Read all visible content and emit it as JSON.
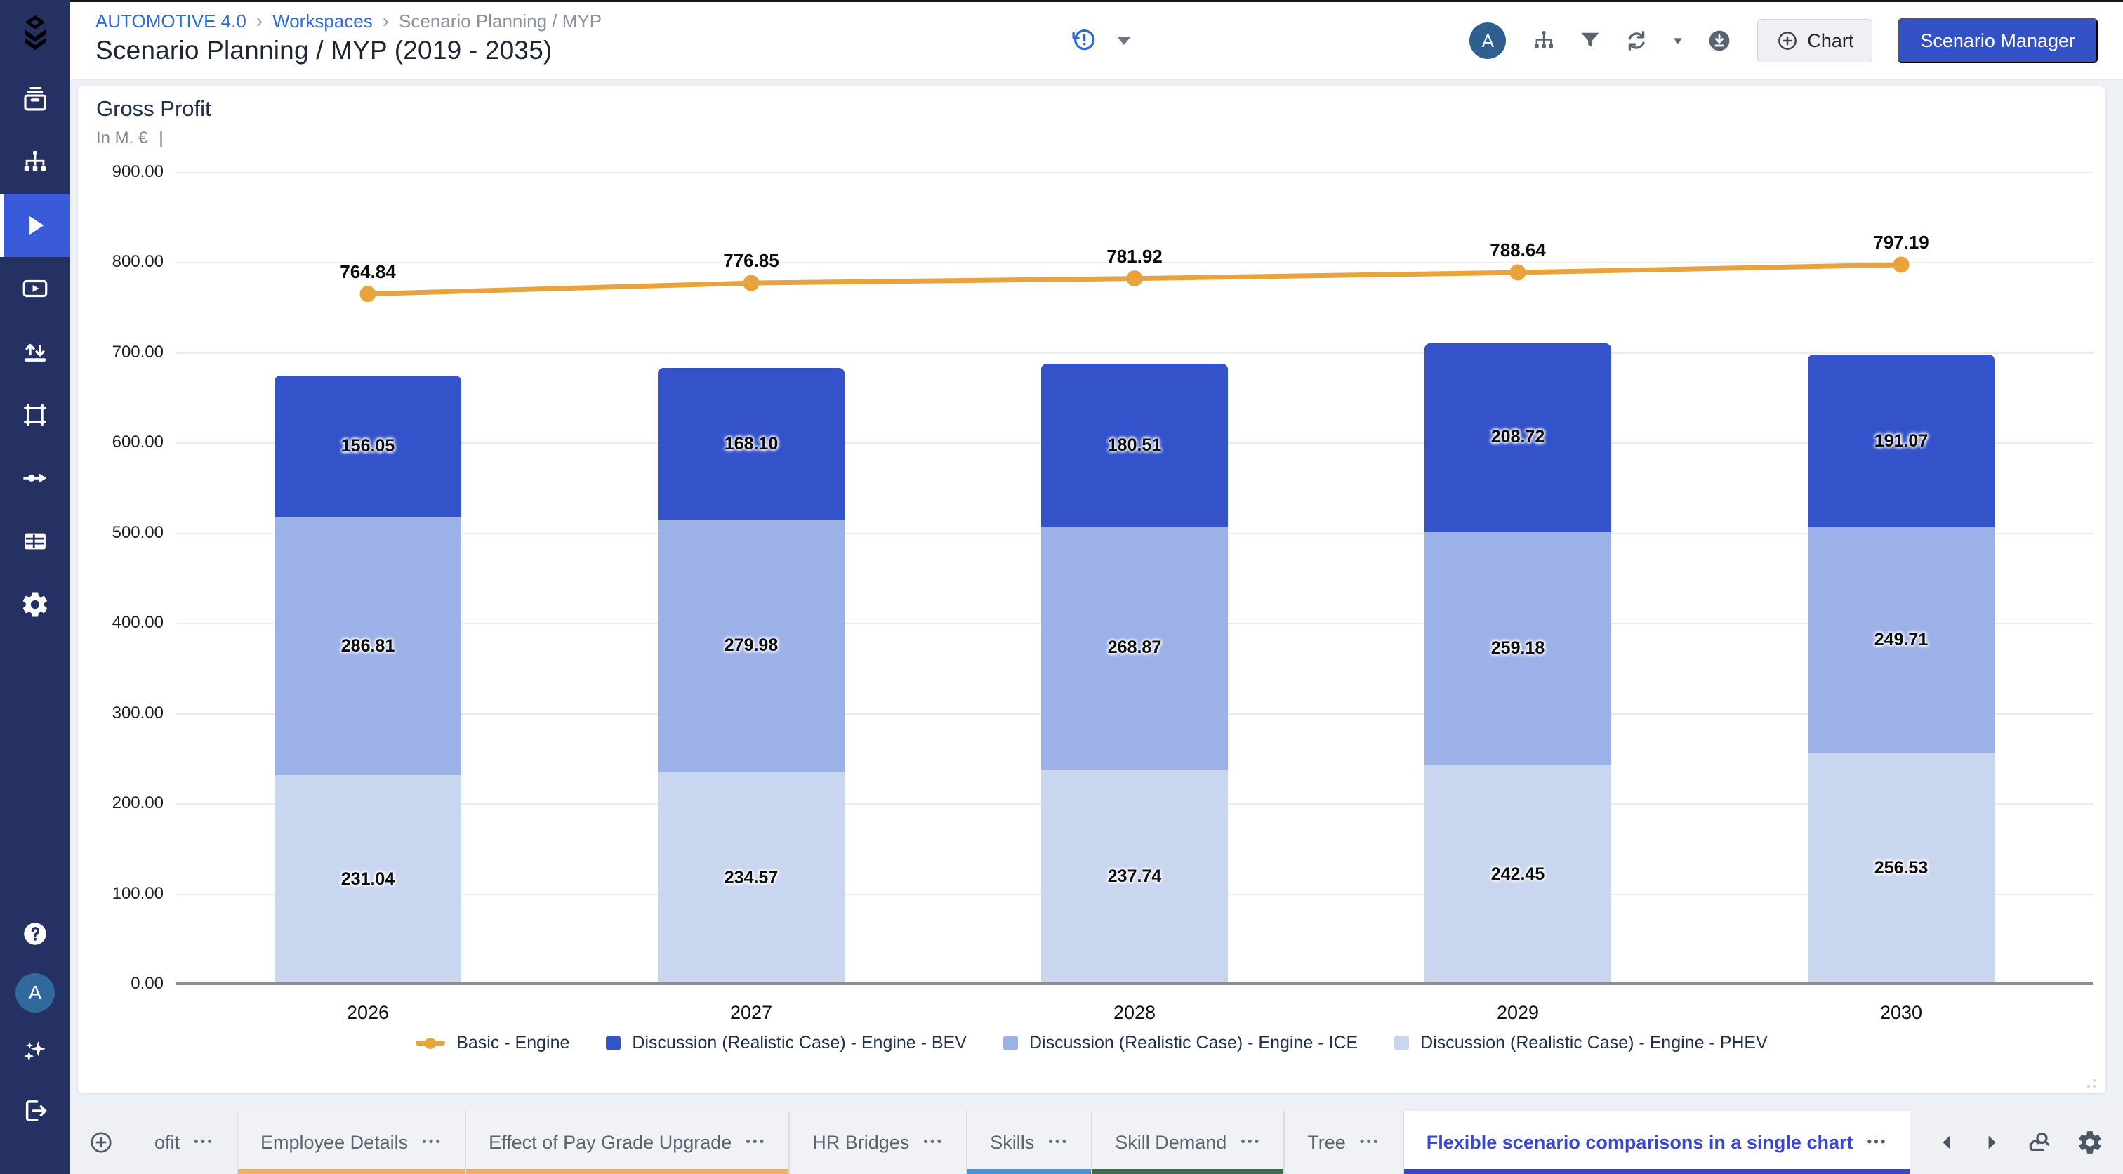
{
  "colors": {
    "sidebar_bg": "#263163",
    "sidebar_active": "#3a5bd9",
    "link_blue": "#2f6bd8",
    "primary_button_blue": "#3451c6",
    "accent_orange": "#e8a33d",
    "grid": "#ececec",
    "axis": "#8e8e8e"
  },
  "sidebar": {
    "logo_icon": "stack-logo",
    "top_items": [
      {
        "icon": "archive",
        "active": false
      },
      {
        "icon": "org-chart",
        "active": false
      },
      {
        "icon": "play",
        "active": true
      },
      {
        "icon": "video",
        "active": false
      },
      {
        "icon": "import-export",
        "active": false
      },
      {
        "icon": "frame",
        "active": false
      },
      {
        "icon": "flow-arrow",
        "active": false
      },
      {
        "icon": "table",
        "active": false
      },
      {
        "icon": "gear",
        "active": false
      }
    ],
    "bottom_items": [
      {
        "icon": "help"
      },
      {
        "icon": "avatar",
        "letter": "A"
      },
      {
        "icon": "sparkles"
      },
      {
        "icon": "logout"
      }
    ],
    "avatar_letter": "A"
  },
  "header": {
    "breadcrumb": [
      {
        "label": "AUTOMOTIVE 4.0",
        "link": true
      },
      {
        "label": "Workspaces",
        "link": true
      },
      {
        "label": "Scenario Planning / MYP",
        "link": false
      }
    ],
    "title": "Scenario Planning / MYP (2019 - 2035)",
    "history_icon": "history-alert",
    "avatar_letter": "A",
    "right_icons": [
      "org-chart",
      "filter",
      "refresh",
      "caret-down",
      "download"
    ],
    "chart_button": "Chart",
    "scenario_manager_button": "Scenario Manager"
  },
  "chart": {
    "title": "Gross Profit",
    "subtitle": "In M. €",
    "subtitle_suffix": "|"
  },
  "chart_data": {
    "type": "bar",
    "stacked": true,
    "categories": [
      "2026",
      "2027",
      "2028",
      "2029",
      "2030"
    ],
    "series": [
      {
        "name": "Discussion (Realistic Case) - Engine - PHEV",
        "color": "#c9d6f0",
        "values": [
          231.04,
          234.57,
          237.74,
          242.45,
          256.53
        ]
      },
      {
        "name": "Discussion (Realistic Case) - Engine - ICE",
        "color": "#9db1e9",
        "values": [
          286.81,
          279.98,
          268.87,
          259.18,
          249.71
        ]
      },
      {
        "name": "Discussion (Realistic Case) - Engine - BEV",
        "color": "#3453cb",
        "values": [
          156.05,
          168.1,
          180.51,
          208.72,
          191.07
        ]
      }
    ],
    "line_series": [
      {
        "name": "Basic - Engine",
        "color": "#e8a33d",
        "values": [
          764.84,
          776.85,
          781.92,
          788.64,
          797.19
        ]
      }
    ],
    "title": "Gross Profit",
    "ylabel": "In M. €",
    "xlabel": "",
    "ylim": [
      0,
      900
    ],
    "ytick_step": 100,
    "grid": true,
    "legend_position": "bottom",
    "value_decimals": 2
  },
  "tabs": {
    "items": [
      {
        "label": "ofit",
        "dots": "•••",
        "underline": null,
        "active": false
      },
      {
        "label": "Employee Details",
        "dots": "•••",
        "underline": "#eeb069",
        "active": false
      },
      {
        "label": "Effect of Pay Grade Upgrade",
        "dots": "•••",
        "underline": "#eeb069",
        "active": false
      },
      {
        "label": "HR Bridges",
        "dots": "•••",
        "underline": null,
        "active": false
      },
      {
        "label": "Skills",
        "dots": "•••",
        "underline": "#4a90d5",
        "active": false
      },
      {
        "label": "Skill Demand",
        "dots": "•••",
        "underline": "#3d6b4f",
        "active": false
      },
      {
        "label": "Tree",
        "dots": "•••",
        "underline": null,
        "active": false
      },
      {
        "label": "Flexible scenario comparisons in a single chart",
        "dots": "•••",
        "underline": "#3a46c8",
        "active": true
      }
    ]
  }
}
